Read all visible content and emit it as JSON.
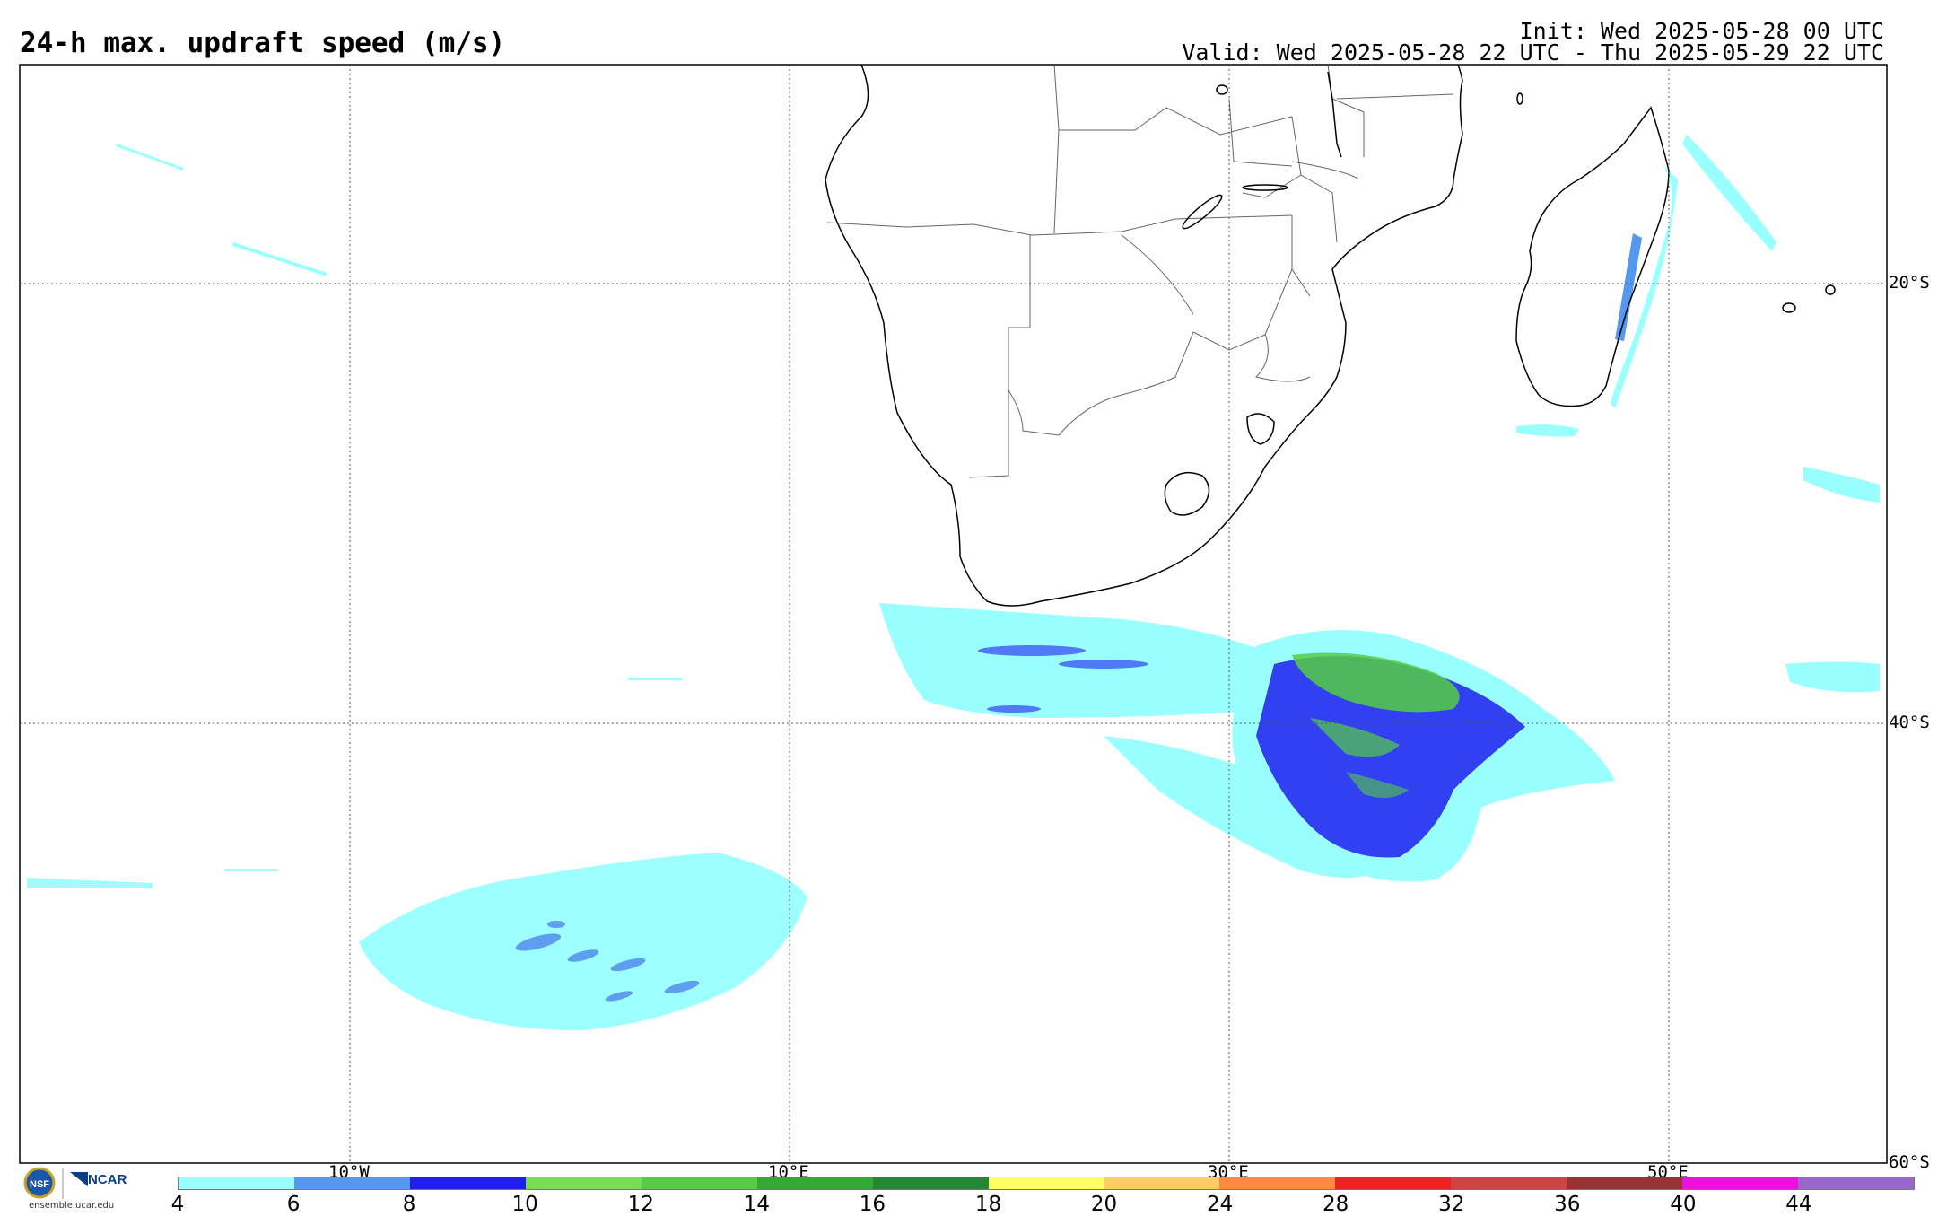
{
  "header": {
    "title": "24-h max. updraft speed (m/s)",
    "init": "Init: Wed 2025-05-28 00 UTC",
    "valid": "Valid: Wed 2025-05-28 22 UTC - Thu 2025-05-29 22 UTC"
  },
  "map": {
    "lat_labels": [
      "20°S",
      "40°S",
      "60°S"
    ],
    "lon_labels": [
      "10°W",
      "10°E",
      "30°E",
      "50°E"
    ],
    "land_outline_color": "#000000",
    "border_color": "#555555",
    "gridline_color": "#555555"
  },
  "colorbar": {
    "levels": [
      "4",
      "6",
      "8",
      "10",
      "12",
      "14",
      "16",
      "18",
      "20",
      "24",
      "28",
      "32",
      "36",
      "40",
      "44"
    ],
    "colors": [
      "#99ffff",
      "#5599ee",
      "#1f1fee",
      "#77dd55",
      "#55cc44",
      "#33aa33",
      "#228833",
      "#ffff66",
      "#ffcc66",
      "#ff8844",
      "#ee2222",
      "#cc4444",
      "#993333",
      "#ee11dd",
      "#9966cc"
    ]
  },
  "logo": {
    "text": "ensemble.ucar.edu",
    "ncar": "NCAR",
    "nsf": "NSF"
  }
}
